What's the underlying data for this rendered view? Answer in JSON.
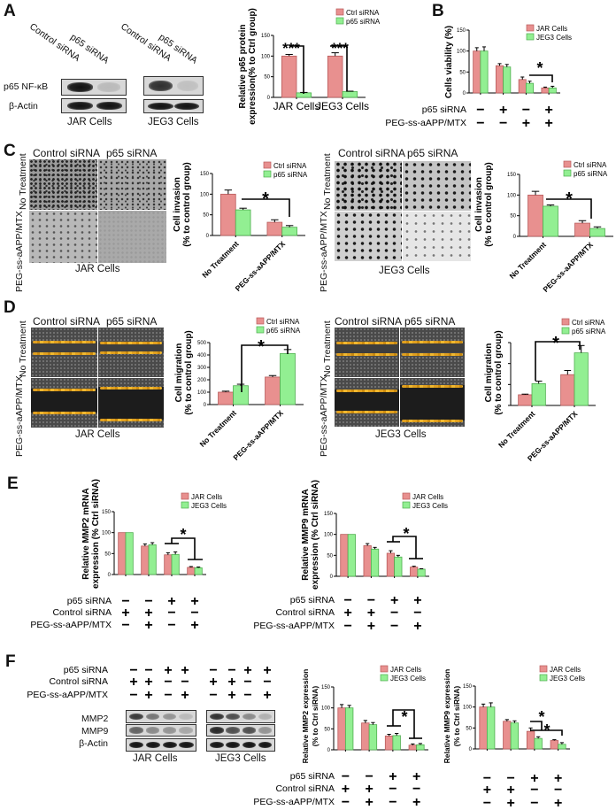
{
  "colors": {
    "red": "#e8908f",
    "red_edge": "#b85a5a",
    "green": "#92ef92",
    "green_edge": "#4fae4f"
  },
  "panel_labels": [
    "A",
    "B",
    "C",
    "D",
    "E",
    "F"
  ],
  "panel_a": {
    "lanes": [
      "Control siRNA",
      "p65 siRNA"
    ],
    "rows": [
      "p65 NF-κB",
      "β-Actin"
    ],
    "cells": [
      "JAR Cells",
      "JEG3 Cells"
    ]
  },
  "panel_c": {
    "columns": [
      "Control siRNA",
      "p65 siRNA"
    ],
    "rows": [
      "No Treatment",
      "PEG-ss-aAPP/MTX"
    ],
    "cells": [
      "JAR Cells",
      "JEG3 Cells"
    ]
  },
  "panel_d": {
    "columns": [
      "Control siRNA",
      "p65 siRNA"
    ],
    "rows": [
      "No Treatment",
      "PEG-ss-aAPP/MTX"
    ],
    "cells": [
      "JAR Cells",
      "JEG3 Cells"
    ]
  },
  "panel_f": {
    "conditions": [
      {
        "label": "p65 siRNA",
        "signs": [
          "−",
          "−",
          "+",
          "+"
        ]
      },
      {
        "label": "Control siRNA",
        "signs": [
          "+",
          "+",
          "−",
          "−"
        ]
      },
      {
        "label": "PEG-ss-aAPP/MTX",
        "signs": [
          "−",
          "+",
          "−",
          "+"
        ]
      }
    ],
    "rows": [
      "MMP2",
      "MMP9",
      "β-Actin"
    ],
    "cells": [
      "JAR Cells",
      "JEG3 Cells"
    ]
  },
  "chart_data": [
    {
      "id": "A",
      "type": "bar",
      "categories": [
        "JAR Cells",
        "JEG3 Cells"
      ],
      "ylim": [
        0,
        150
      ],
      "yticks": [
        0,
        50,
        100,
        150
      ],
      "ylabel": [
        "Relative p65 protein",
        "expression(% to Ctrl group)"
      ],
      "series": [
        {
          "name": "Ctrl siRNA",
          "values": [
            100,
            100
          ],
          "errors": [
            4,
            8
          ]
        },
        {
          "name": "p65 siRNA",
          "values": [
            11,
            14
          ],
          "errors": [
            1,
            1
          ]
        }
      ],
      "significance": [
        "***",
        "***"
      ],
      "legend": "top-right",
      "grid": false
    },
    {
      "id": "B",
      "type": "bar",
      "categories": [
        "1",
        "2",
        "3",
        "4"
      ],
      "ylim": [
        0,
        150
      ],
      "yticks": [
        0,
        50,
        100,
        150
      ],
      "ylabel": [
        "Cells viability (%)"
      ],
      "series": [
        {
          "name": "JAR Cells",
          "values": [
            100,
            65,
            32,
            12
          ],
          "errors": [
            8,
            5,
            6,
            2
          ]
        },
        {
          "name": "JEG3 Cells",
          "values": [
            100,
            62,
            23,
            12
          ],
          "errors": [
            10,
            6,
            5,
            4
          ]
        }
      ],
      "conditions": [
        {
          "label": "p65 siRNA",
          "signs": [
            "−",
            "+",
            "−",
            "+"
          ]
        },
        {
          "label": "PEG-ss-aAPP/MTX",
          "signs": [
            "−",
            "−",
            "+",
            "+"
          ]
        }
      ],
      "significance": [
        "*"
      ],
      "legend": "top-right",
      "grid": false
    },
    {
      "id": "C-JAR",
      "type": "bar",
      "categories": [
        "No Treatment",
        "PEG-ss-aAPP/MTX"
      ],
      "ylim": [
        0,
        150
      ],
      "yticks": [
        0,
        50,
        100,
        150
      ],
      "ylabel": [
        "Cell invasion",
        "(% to control group)"
      ],
      "series": [
        {
          "name": "Ctrl siRNA",
          "values": [
            100,
            32
          ],
          "errors": [
            10,
            6
          ]
        },
        {
          "name": "p65 siRNA",
          "values": [
            62,
            20
          ],
          "errors": [
            4,
            4
          ]
        }
      ],
      "significance": [
        "*"
      ],
      "legend": "top-right",
      "grid": false
    },
    {
      "id": "C-JEG3",
      "type": "bar",
      "categories": [
        "No Treatment",
        "PEG-ss-aAPP/MTX"
      ],
      "ylim": [
        0,
        150
      ],
      "yticks": [
        0,
        50,
        100,
        150
      ],
      "ylabel": [
        "Cell invasion",
        "(% to control group)"
      ],
      "series": [
        {
          "name": "Ctrl siRNA",
          "values": [
            100,
            32
          ],
          "errors": [
            9,
            6
          ]
        },
        {
          "name": "p65 siRNA",
          "values": [
            73,
            19
          ],
          "errors": [
            3,
            4
          ]
        }
      ],
      "significance": [
        "*"
      ],
      "legend": "top-right",
      "grid": false
    },
    {
      "id": "D-JAR",
      "type": "bar",
      "categories": [
        "No Treatment",
        "PEG-ss-aAPP/MTX"
      ],
      "ylim": [
        0,
        500
      ],
      "yticks": [
        0,
        100,
        200,
        300,
        400,
        500
      ],
      "ylabel": [
        "Cell migration",
        "(% to control group)"
      ],
      "series": [
        {
          "name": "Ctrl siRNA",
          "values": [
            100,
            222
          ],
          "errors": [
            8,
            12
          ]
        },
        {
          "name": "p65 siRNA",
          "values": [
            152,
            412
          ],
          "errors": [
            12,
            32
          ]
        }
      ],
      "significance": [
        "*"
      ],
      "legend": "top-right",
      "grid": false
    },
    {
      "id": "D-JEG3",
      "type": "bar",
      "categories": [
        "No Treatment",
        "PEG-ss-aAPP/MTX"
      ],
      "ylim": [
        0,
        3
      ],
      "yticks": [
        0,
        1,
        2,
        3
      ],
      "ytick_labels_shown": false,
      "ylabel": [
        "Cell migration",
        "(% to control group)"
      ],
      "series": [
        {
          "name": "Ctrl siRNA",
          "values": [
            0.51,
            1.47
          ],
          "errors": [
            0.03,
            0.2
          ]
        },
        {
          "name": "p65 siRNA",
          "values": [
            1.04,
            2.51
          ],
          "errors": [
            0.12,
            0.35
          ]
        }
      ],
      "significance": [
        "*"
      ],
      "legend": "top-right",
      "grid": false
    },
    {
      "id": "E-MMP2",
      "type": "bar",
      "categories": [
        "1",
        "2",
        "3",
        "4"
      ],
      "ylim": [
        0,
        150
      ],
      "yticks": [
        0,
        50,
        100,
        150
      ],
      "ylabel": [
        "Relative MMP2 mRNA",
        "expression (% Ctrl siRNA)"
      ],
      "series": [
        {
          "name": "JAR Cells",
          "values": [
            100,
            68,
            47,
            17
          ],
          "errors": [
            0,
            5,
            5,
            2
          ]
        },
        {
          "name": "JEG3 Cells",
          "values": [
            100,
            71,
            48,
            16
          ],
          "errors": [
            0,
            5,
            6,
            2
          ]
        }
      ],
      "conditions": [
        {
          "label": "p65 siRNA",
          "signs": [
            "−",
            "−",
            "+",
            "+"
          ]
        },
        {
          "label": "Control siRNA",
          "signs": [
            "+",
            "+",
            "−",
            "−"
          ]
        },
        {
          "label": "PEG-ss-aAPP/MTX",
          "signs": [
            "−",
            "+",
            "−",
            "+"
          ]
        }
      ],
      "significance": [
        "*"
      ],
      "legend": "top-right",
      "grid": false
    },
    {
      "id": "E-MMP9",
      "type": "bar",
      "categories": [
        "1",
        "2",
        "3",
        "4"
      ],
      "ylim": [
        0,
        150
      ],
      "yticks": [
        0,
        50,
        100,
        150
      ],
      "ylabel": [
        "Relative MMP9 mRNA",
        "expression (% Ctrl siRNA)"
      ],
      "series": [
        {
          "name": "JAR Cells",
          "values": [
            100,
            73,
            55,
            22
          ],
          "errors": [
            0,
            5,
            6,
            2
          ]
        },
        {
          "name": "JEG3 Cells",
          "values": [
            100,
            65,
            46,
            17
          ],
          "errors": [
            0,
            4,
            4,
            1
          ]
        }
      ],
      "conditions": [
        {
          "label": "p65 siRNA",
          "signs": [
            "−",
            "−",
            "+",
            "+"
          ]
        },
        {
          "label": "Control siRNA",
          "signs": [
            "+",
            "+",
            "−",
            "−"
          ]
        },
        {
          "label": "PEG-ss-aAPP/MTX",
          "signs": [
            "−",
            "+",
            "−",
            "+"
          ]
        }
      ],
      "significance": [
        "*"
      ],
      "legend": "top-right",
      "grid": false
    },
    {
      "id": "F-MMP2",
      "type": "bar",
      "categories": [
        "1",
        "2",
        "3",
        "4"
      ],
      "ylim": [
        0,
        150
      ],
      "yticks": [
        0,
        50,
        100,
        150
      ],
      "ylabel": [
        "Relative MMP2 expression",
        "(% to Ctrl siRNA)"
      ],
      "series": [
        {
          "name": "JAR Cells",
          "values": [
            100,
            64,
            33,
            11
          ],
          "errors": [
            8,
            6,
            4,
            3
          ]
        },
        {
          "name": "JEG3 Cells",
          "values": [
            100,
            60,
            34,
            12
          ],
          "errors": [
            6,
            5,
            5,
            3
          ]
        }
      ],
      "conditions": [
        {
          "label": "p65 siRNA",
          "signs": [
            "−",
            "−",
            "+",
            "+"
          ]
        },
        {
          "label": "Control siRNA",
          "signs": [
            "+",
            "+",
            "−",
            "−"
          ]
        },
        {
          "label": "PEG-ss-aAPP/MTX",
          "signs": [
            "−",
            "+",
            "−",
            "+"
          ]
        }
      ],
      "significance": [
        "*"
      ],
      "legend": "top-right",
      "grid": false
    },
    {
      "id": "F-MMP9",
      "type": "bar",
      "categories": [
        "1",
        "2",
        "3",
        "4"
      ],
      "ylim": [
        0,
        150
      ],
      "yticks": [
        0,
        50,
        100,
        150
      ],
      "ylabel": [
        "Relative MMP9 expression",
        "(% to Ctrl siRNA)"
      ],
      "series": [
        {
          "name": "JAR Cells",
          "values": [
            100,
            66,
            42,
            20
          ],
          "errors": [
            7,
            4,
            8,
            2
          ]
        },
        {
          "name": "JEG3 Cells",
          "values": [
            100,
            62,
            25,
            11
          ],
          "errors": [
            10,
            5,
            4,
            4
          ]
        }
      ],
      "conditions": [
        {
          "label": "",
          "signs": [
            "−",
            "−",
            "+",
            "+"
          ]
        },
        {
          "label": "",
          "signs": [
            "+",
            "+",
            "−",
            "−"
          ]
        },
        {
          "label": "",
          "signs": [
            "−",
            "+",
            "−",
            "+"
          ]
        }
      ],
      "significance": [
        "*",
        "*"
      ],
      "legend": "top-right",
      "grid": false
    }
  ]
}
